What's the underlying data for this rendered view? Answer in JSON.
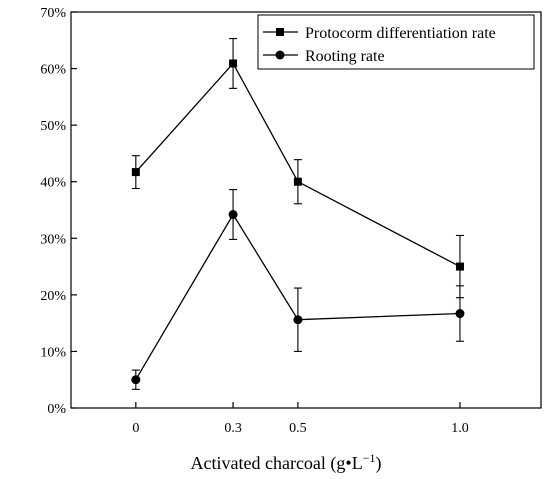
{
  "chart_data": {
    "type": "line",
    "x": [
      0,
      0.3,
      0.5,
      1.0
    ],
    "x_tick_labels": [
      "0",
      "0.3",
      "0.5",
      "1.0"
    ],
    "xlim": [
      -0.2,
      1.25
    ],
    "xlabel": "Activated charcoal (g•L",
    "xlabel_sup": "−1",
    "xlabel_close": ")",
    "ylim": [
      0,
      70
    ],
    "y_ticks": [
      0,
      10,
      20,
      30,
      40,
      50,
      60,
      70
    ],
    "y_tick_format": "percent",
    "grid": false,
    "legend_position": "top-right",
    "series": [
      {
        "name": "Protocorm differentiation rate",
        "marker": "square",
        "values": [
          41.7,
          60.9,
          40.0,
          25.0
        ],
        "error": [
          2.9,
          4.4,
          3.9,
          5.5
        ]
      },
      {
        "name": "Rooting rate",
        "marker": "circle",
        "values": [
          5.0,
          34.2,
          15.6,
          16.7
        ],
        "error": [
          1.7,
          4.4,
          5.6,
          4.9
        ]
      }
    ]
  }
}
